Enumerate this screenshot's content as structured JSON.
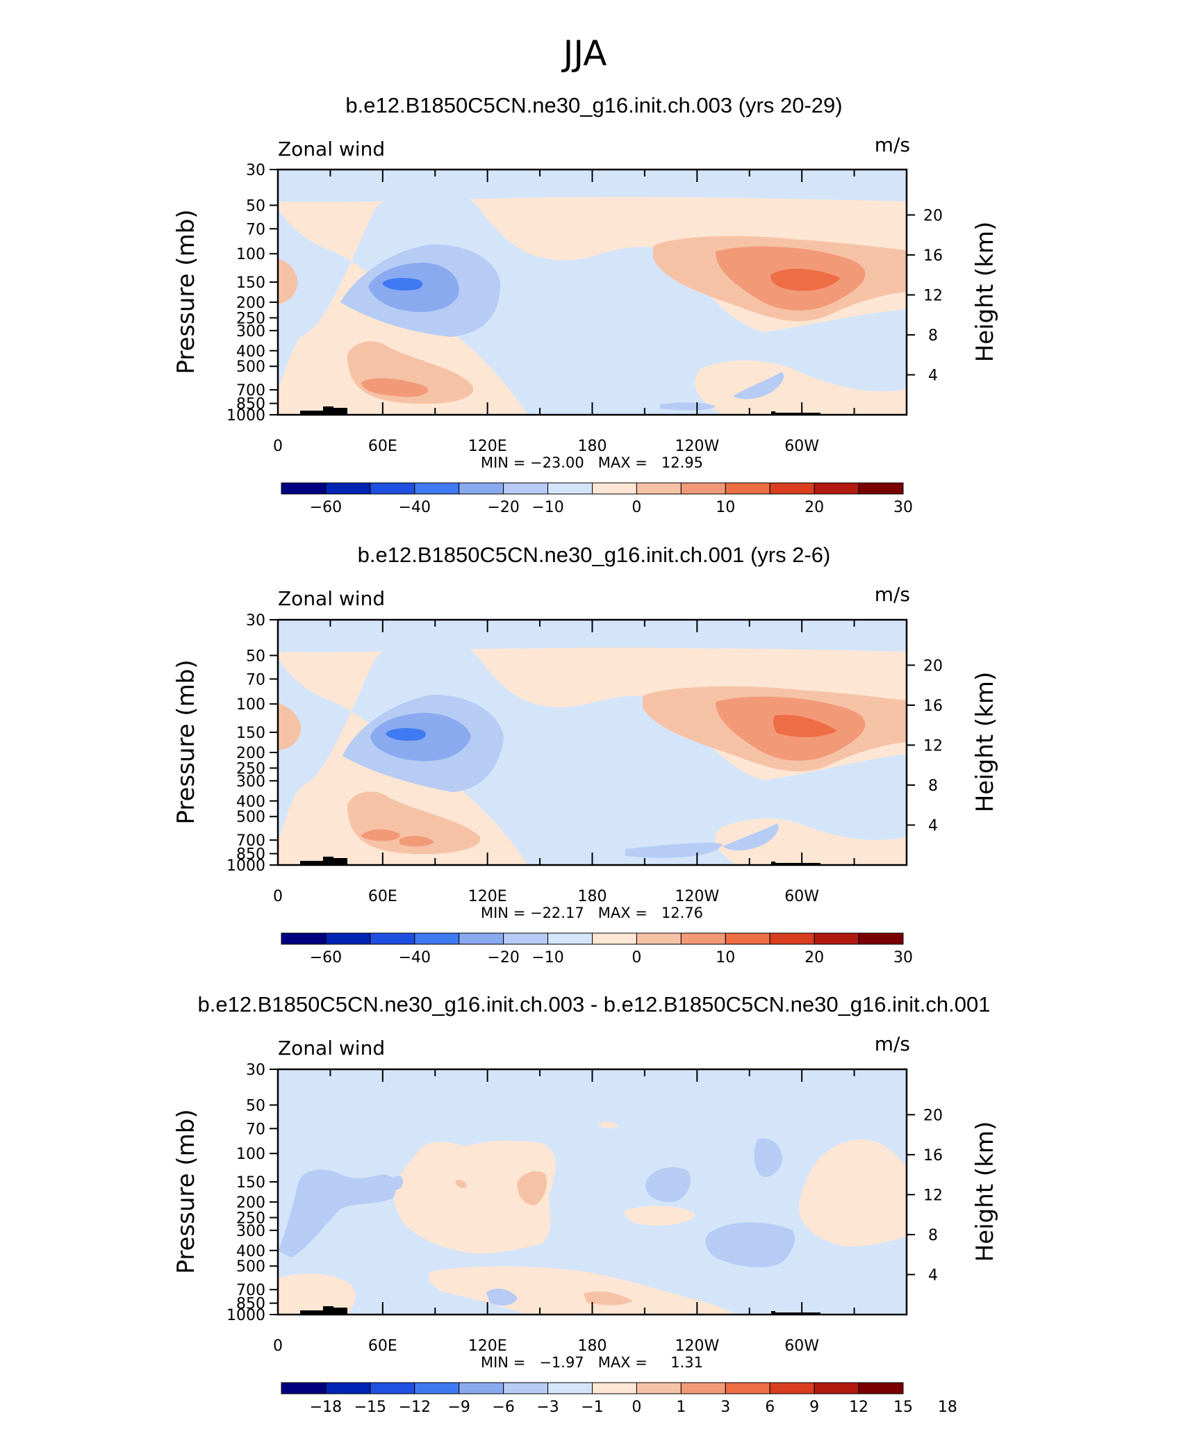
{
  "page": {
    "season": "JJA"
  },
  "colors": {
    "wind_scale": [
      "#000080",
      "#0024b3",
      "#1f4fe0",
      "#3f7af2",
      "#8aaaf0",
      "#b6ccf5",
      "#d4e5fa",
      "#fde6d4",
      "#f6c2a6",
      "#f29a78",
      "#ed6d45",
      "#d93f1f",
      "#b21a10",
      "#7a0000"
    ],
    "land": "#000000"
  },
  "chart_data": [
    {
      "type": "contour",
      "title": "b.e12.B1850C5CN.ne30_g16.init.ch.003 (yrs 20-29)",
      "left_label": "Zonal wind",
      "right_label": "m/s",
      "ylabel": "Pressure (mb)",
      "y2label": "Height (km)",
      "y_ticks": [
        30,
        50,
        70,
        100,
        150,
        200,
        250,
        300,
        400,
        500,
        700,
        850,
        1000
      ],
      "y2_ticks": [
        20,
        16,
        12,
        8,
        4
      ],
      "x_ticks": [
        "0",
        "60E",
        "120E",
        "180",
        "120W",
        "60W"
      ],
      "x_tick_positions_deg": [
        0,
        60,
        120,
        180,
        240,
        300
      ],
      "min_max": "MIN = −23.00   MAX =   12.95",
      "min": -23.0,
      "max": 12.95,
      "colorbar_labels": [
        "−60",
        "−40",
        "−20",
        "−10",
        "0",
        "10",
        "20",
        "30"
      ],
      "colorbar_label_boundaries": [
        1,
        3,
        5,
        6,
        8,
        10,
        12,
        14
      ]
    },
    {
      "type": "contour",
      "title": "b.e12.B1850C5CN.ne30_g16.init.ch.001 (yrs 2-6)",
      "left_label": "Zonal wind",
      "right_label": "m/s",
      "ylabel": "Pressure (mb)",
      "y2label": "Height (km)",
      "y_ticks": [
        30,
        50,
        70,
        100,
        150,
        200,
        250,
        300,
        400,
        500,
        700,
        850,
        1000
      ],
      "y2_ticks": [
        20,
        16,
        12,
        8,
        4
      ],
      "x_ticks": [
        "0",
        "60E",
        "120E",
        "180",
        "120W",
        "60W"
      ],
      "x_tick_positions_deg": [
        0,
        60,
        120,
        180,
        240,
        300
      ],
      "min_max": "MIN = −22.17   MAX =   12.76",
      "min": -22.17,
      "max": 12.76,
      "colorbar_labels": [
        "−60",
        "−40",
        "−20",
        "−10",
        "0",
        "10",
        "20",
        "30"
      ],
      "colorbar_label_boundaries": [
        1,
        3,
        5,
        6,
        8,
        10,
        12,
        14
      ]
    },
    {
      "type": "contour",
      "title": "b.e12.B1850C5CN.ne30_g16.init.ch.003 - b.e12.B1850C5CN.ne30_g16.init.ch.001",
      "left_label": "Zonal wind",
      "right_label": "m/s",
      "ylabel": "Pressure (mb)",
      "y2label": "Height (km)",
      "y_ticks": [
        30,
        50,
        70,
        100,
        150,
        200,
        250,
        300,
        400,
        500,
        700,
        850,
        1000
      ],
      "y2_ticks": [
        20,
        16,
        12,
        8,
        4
      ],
      "x_ticks": [
        "0",
        "60E",
        "120E",
        "180",
        "120W",
        "60W"
      ],
      "x_tick_positions_deg": [
        0,
        60,
        120,
        180,
        240,
        300
      ],
      "min_max": "MIN =   −1.97   MAX =     1.31",
      "min": -1.97,
      "max": 1.31,
      "colorbar_labels": [
        "−18",
        "−15",
        "−12",
        "−9",
        "−6",
        "−3",
        "−1",
        "0",
        "1",
        "3",
        "6",
        "9",
        "12",
        "15",
        "18"
      ],
      "colorbar_label_boundaries": [
        1,
        2,
        3,
        4,
        5,
        6,
        7,
        8,
        9,
        10,
        11,
        12,
        13,
        14,
        15
      ]
    }
  ]
}
